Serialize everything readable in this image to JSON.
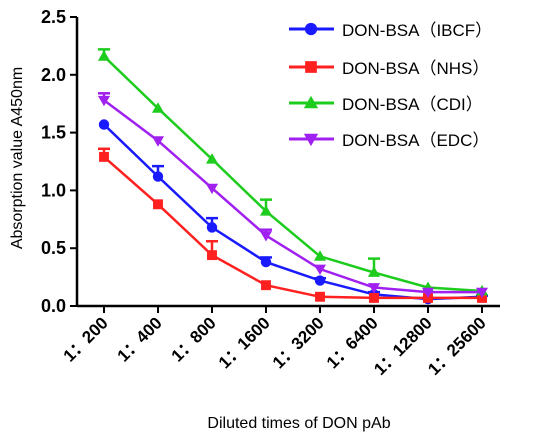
{
  "chart_data": {
    "type": "line",
    "xlabel": "Diluted times of DON pAb",
    "ylabel": "Absorption value A450nm",
    "categories": [
      "1：200",
      "1：400",
      "1：800",
      "1：1600",
      "1：3200",
      "1：6400",
      "1：12800",
      "1：25600"
    ],
    "ylim": [
      0,
      2.5
    ],
    "yticks": [
      "0.0",
      "0.5",
      "1.0",
      "1.5",
      "2.0",
      "2.5"
    ],
    "legend_position": "top-right",
    "grid": false,
    "series": [
      {
        "name": "DON-BSA（IBCF）",
        "color": "#1a1aff",
        "marker": "circle",
        "values": [
          1.57,
          1.12,
          0.68,
          0.38,
          0.22,
          0.1,
          0.06,
          0.08
        ],
        "errors": [
          0.0,
          0.09,
          0.08,
          0.04,
          0.02,
          0.02,
          0.01,
          0.01
        ]
      },
      {
        "name": "DON-BSA（NHS）",
        "color": "#ff2020",
        "marker": "square",
        "values": [
          1.29,
          0.88,
          0.44,
          0.18,
          0.08,
          0.07,
          0.07,
          0.07
        ],
        "errors": [
          0.07,
          0.0,
          0.12,
          0.0,
          0.0,
          0.0,
          0.0,
          0.0
        ]
      },
      {
        "name": "DON-BSA（CDI）",
        "color": "#1dcc1d",
        "marker": "triangle-up",
        "values": [
          2.16,
          1.71,
          1.27,
          0.82,
          0.43,
          0.29,
          0.16,
          0.13
        ],
        "errors": [
          0.06,
          0.0,
          0.0,
          0.1,
          0.0,
          0.12,
          0.0,
          0.0
        ]
      },
      {
        "name": "DON-BSA（EDC）",
        "color": "#a020f0",
        "marker": "triangle-down",
        "values": [
          1.78,
          1.43,
          1.02,
          0.61,
          0.32,
          0.16,
          0.12,
          0.12
        ],
        "errors": [
          0.06,
          0.0,
          0.0,
          0.05,
          0.0,
          0.0,
          0.0,
          0.0
        ]
      }
    ]
  }
}
